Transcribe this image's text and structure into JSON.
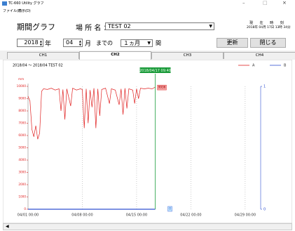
{
  "window": {
    "title": "TC-660 Utility グラフ",
    "menu": [
      "ファイル(F)",
      "表示(D)"
    ]
  },
  "header": {
    "title": "期間グラフ",
    "location_label": "場 所 名 ：",
    "location": "TEST 02",
    "now_label": "現 在 時 刻",
    "now": "2018年 04月 17日 13時 34分"
  },
  "controls": {
    "year": "2018",
    "year_unit": "年",
    "month": "04",
    "month_unit": "月",
    "until": "までの",
    "period": "１ヵ月",
    "period_unit": "間",
    "buttons": [
      "更新",
      "閉じる"
    ]
  },
  "tabs": [
    "CH1",
    "CH2",
    "CH3",
    "CH4"
  ],
  "chart_data": {
    "type": "line",
    "title": "2018/04 ～ 2018/04  TEST 02",
    "y_label": "mm",
    "cursor_label": "2018/04/17 09:40",
    "x": [
      "04/01 00:00",
      "04/01 06:00",
      "04/01 12:00",
      "04/01 18:00",
      "04/02 00:00",
      "04/02 06:00",
      "04/02 12:00",
      "04/02 18:00",
      "04/03 00:00",
      "04/03 12:00",
      "04/04 00:00",
      "04/04 12:00",
      "04/05 00:00",
      "04/05 06:00",
      "04/05 12:00",
      "04/05 18:00",
      "04/06 00:00",
      "04/06 12:00",
      "04/06 18:00",
      "04/07 06:00",
      "04/07 18:00",
      "04/08 00:00",
      "04/08 06:00",
      "04/08 12:00",
      "04/08 18:00",
      "04/09 00:00",
      "04/09 06:00",
      "04/09 12:00",
      "04/09 18:00",
      "04/10 00:00",
      "04/10 06:00",
      "04/10 12:00",
      "04/11 00:00",
      "04/11 12:00",
      "04/11 18:00",
      "04/12 06:00",
      "04/12 18:00",
      "04/13 00:00",
      "04/13 06:00",
      "04/13 12:00",
      "04/13 18:00",
      "04/14 00:00",
      "04/14 12:00",
      "04/14 18:00",
      "04/15 00:00",
      "04/15 06:00",
      "04/15 12:00",
      "04/16 00:00",
      "04/16 12:00",
      "04/17 00:00",
      "04/17 09:40"
    ],
    "series": [
      {
        "name": "A",
        "color": "#e02020",
        "values": [
          9200,
          8800,
          6500,
          5900,
          6800,
          5700,
          6200,
          9600,
          9800,
          9750,
          9850,
          9700,
          9800,
          8000,
          9750,
          7300,
          9800,
          8400,
          9850,
          9700,
          9800,
          9750,
          6600,
          9800,
          7000,
          9700,
          8300,
          9850,
          6600,
          9800,
          7600,
          9750,
          9850,
          8600,
          9800,
          9700,
          8500,
          9800,
          7700,
          9850,
          8200,
          9800,
          9700,
          8600,
          9800,
          9000,
          9850,
          9800,
          9850,
          9800,
          9936
        ]
      },
      {
        "name": "B",
        "color": "#3050d0",
        "axis": "y2",
        "values": [
          0,
          0,
          0,
          0,
          0,
          0,
          0,
          0,
          0,
          0,
          0,
          0,
          0,
          0,
          0,
          0,
          0,
          0,
          0,
          0,
          0,
          0,
          0,
          0,
          0,
          0,
          0,
          0,
          0,
          0,
          0,
          0,
          0,
          0,
          0,
          0,
          0,
          0,
          0,
          0,
          0,
          0,
          0,
          0,
          0,
          0,
          0,
          0,
          0,
          0,
          0
        ]
      }
    ],
    "xlim": [
      "04/01 00:00",
      "05/01 00:00"
    ],
    "xticks": [
      "04/01 00:00",
      "04/08 00:00",
      "04/15 00:00",
      "04/22 00:00",
      "04/29 00:00"
    ],
    "ylim": [
      0,
      10000
    ],
    "yticks": [
      0,
      1000,
      2000,
      3000,
      4000,
      5000,
      6000,
      7000,
      8000,
      9000,
      10000
    ],
    "y2lim": [
      0,
      1
    ],
    "y2ticks": [
      0,
      1
    ],
    "grid": "x",
    "legend": "top-right"
  }
}
